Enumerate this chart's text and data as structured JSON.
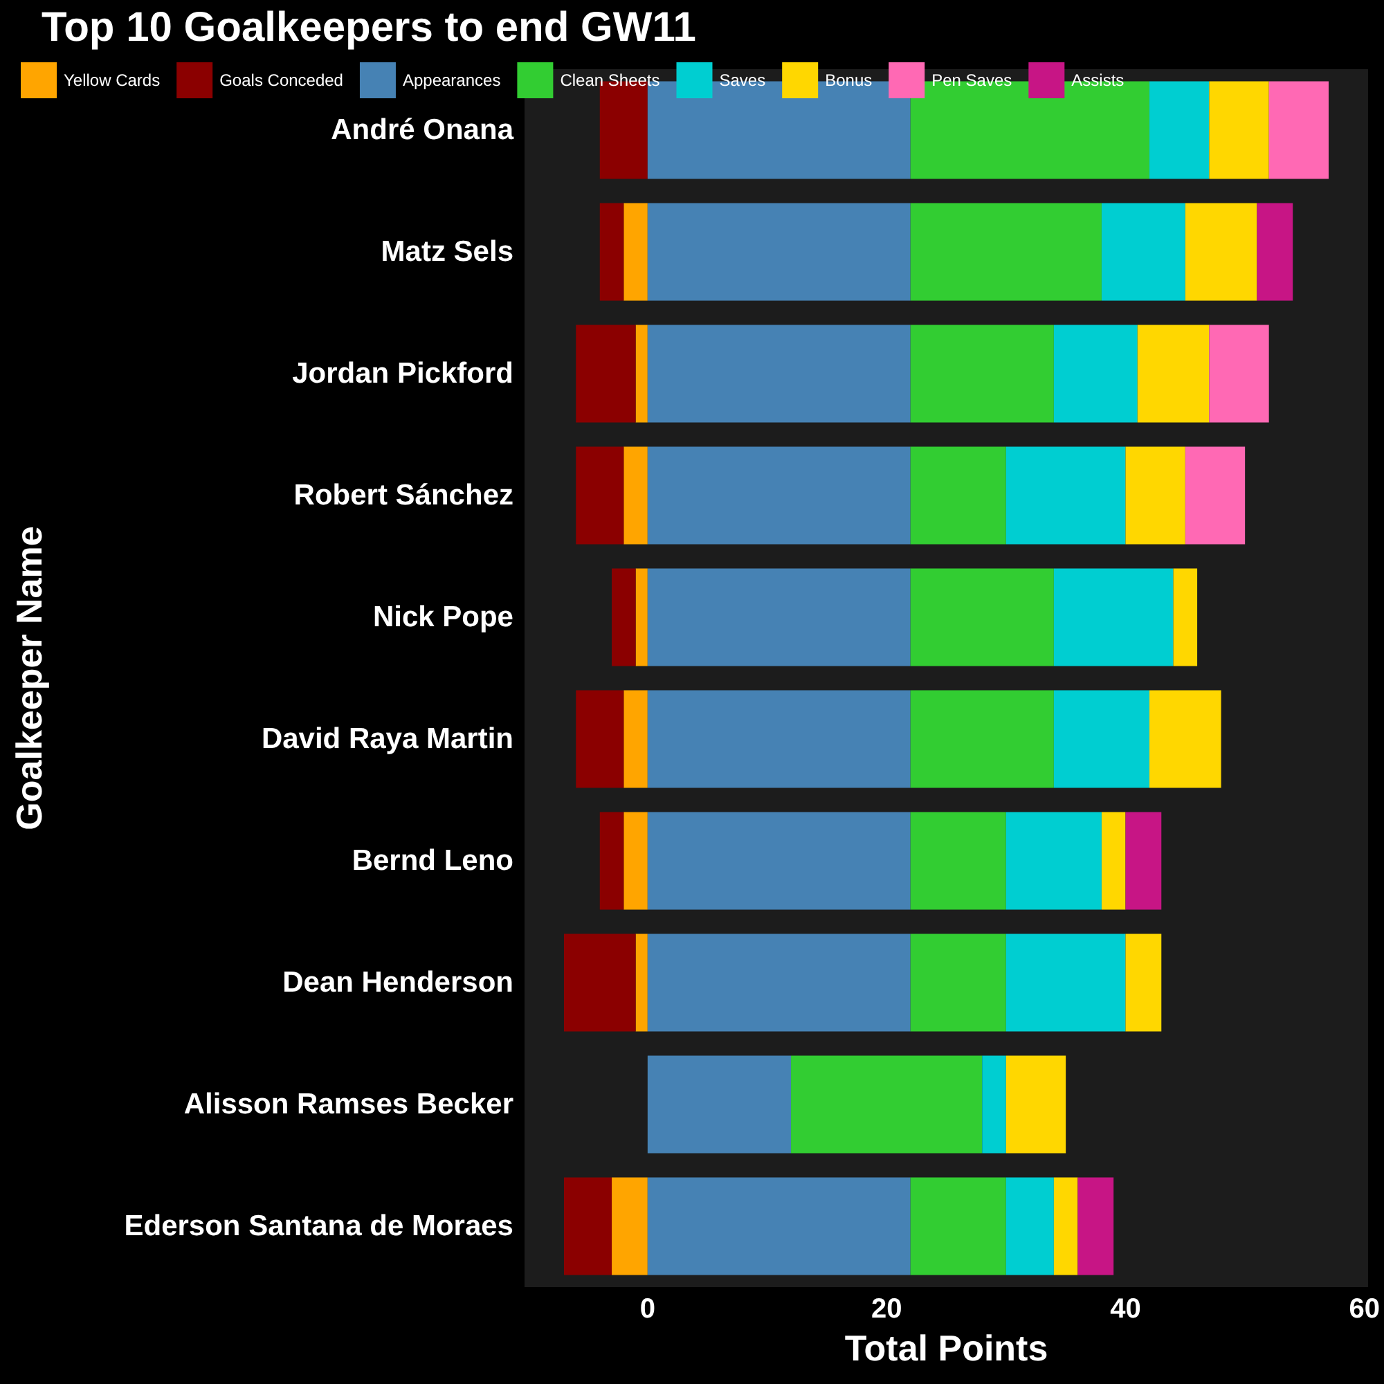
{
  "chart_data": {
    "type": "bar",
    "title": "Top 10 Goalkeepers to end GW11",
    "xlabel": "Total Points",
    "ylabel": "Goalkeeper Name",
    "orientation": "horizontal",
    "stacked": true,
    "legend": "top left",
    "grid": false,
    "xlim": [
      -10.3,
      60.3
    ],
    "xticks": [
      0,
      20,
      40,
      60
    ],
    "categories": [
      "André Onana",
      "Matz Sels",
      "Jordan Pickford",
      "Robert Sánchez",
      "Nick Pope",
      "David Raya Martin",
      "Bernd Leno",
      "Dean Henderson",
      "Alisson Ramses Becker",
      "Ederson Santana de Moraes"
    ],
    "series": [
      {
        "name": "Yellow Cards",
        "color": "#ffa500",
        "values": [
          null,
          -2,
          -1,
          -2,
          -1,
          -2,
          -2,
          -1,
          null,
          -3
        ]
      },
      {
        "name": "Goals Conceded",
        "color": "#8b0000",
        "values": [
          -4,
          -2,
          -5,
          -4,
          -2,
          -4,
          -2,
          -6,
          null,
          -4
        ]
      },
      {
        "name": "Appearances",
        "color": "#4682b4",
        "values": [
          22,
          22,
          22,
          22,
          22,
          22,
          22,
          22,
          12,
          22
        ]
      },
      {
        "name": "Clean Sheets",
        "color": "#32cd32",
        "values": [
          20,
          16,
          12,
          8,
          12,
          12,
          8,
          8,
          16,
          8
        ]
      },
      {
        "name": "Saves",
        "color": "#00ced1",
        "values": [
          5,
          7,
          7,
          10,
          10,
          8,
          8,
          10,
          2,
          4
        ]
      },
      {
        "name": "Bonus",
        "color": "#ffd700",
        "values": [
          5,
          6,
          6,
          5,
          2,
          6,
          2,
          3,
          5,
          2
        ]
      },
      {
        "name": "Pen Saves",
        "color": "#ff69b4",
        "values": [
          5,
          null,
          5,
          5,
          null,
          null,
          null,
          null,
          null,
          null
        ]
      },
      {
        "name": "Assists",
        "color": "#c71585",
        "values": [
          null,
          3,
          null,
          null,
          null,
          null,
          3,
          null,
          null,
          3
        ]
      }
    ]
  }
}
